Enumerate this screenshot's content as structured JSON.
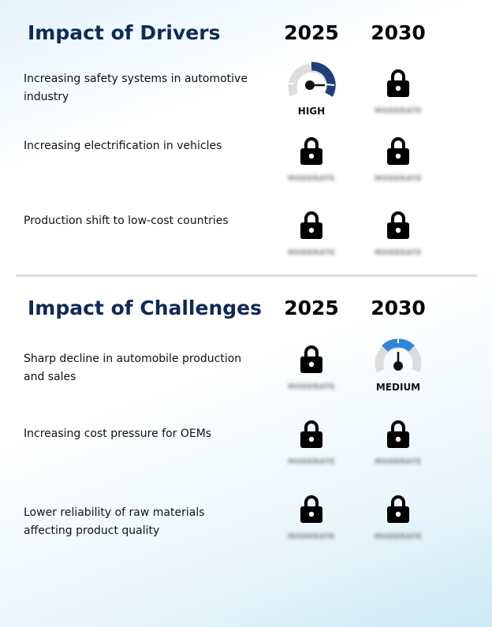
{
  "drivers": {
    "title": "Impact of Drivers",
    "years": [
      "2025",
      "2030"
    ],
    "rows": [
      {
        "label": "Increasing safety systems in automotive industry",
        "y2025": {
          "type": "gauge",
          "level": "high",
          "text": "HIGH",
          "color": "#1f3d7a"
        },
        "y2030": {
          "type": "locked",
          "text": "MODERATE"
        }
      },
      {
        "label": "Increasing electrification in vehicles",
        "y2025": {
          "type": "locked",
          "text": "MODERATE"
        },
        "y2030": {
          "type": "locked",
          "text": "MODERATE"
        }
      },
      {
        "label": "Production shift to low-cost countries",
        "y2025": {
          "type": "locked",
          "text": "MODERATE"
        },
        "y2030": {
          "type": "locked",
          "text": "MODERATE"
        }
      }
    ]
  },
  "challenges": {
    "title": "Impact of Challenges",
    "years": [
      "2025",
      "2030"
    ],
    "rows": [
      {
        "label": "Sharp decline in automobile production and sales",
        "y2025": {
          "type": "locked",
          "text": "MODERATE"
        },
        "y2030": {
          "type": "gauge",
          "level": "medium",
          "text": "MEDIUM",
          "color": "#2f86dc"
        }
      },
      {
        "label": "Increasing cost pressure for OEMs",
        "y2025": {
          "type": "locked",
          "text": "MODERATE"
        },
        "y2030": {
          "type": "locked",
          "text": "MODERATE"
        }
      },
      {
        "label": "Lower reliability of raw materials affecting product quality",
        "y2025": {
          "type": "locked",
          "text": "MODERATE"
        },
        "y2030": {
          "type": "locked",
          "text": "MODERATE"
        }
      }
    ]
  },
  "icons": {
    "locked": "lock-icon",
    "gauge": "gauge-icon"
  },
  "colors": {
    "title": "#0e2a55",
    "gauge_track": "#dddddd",
    "high": "#1f3d7a",
    "medium": "#2f86dc"
  }
}
